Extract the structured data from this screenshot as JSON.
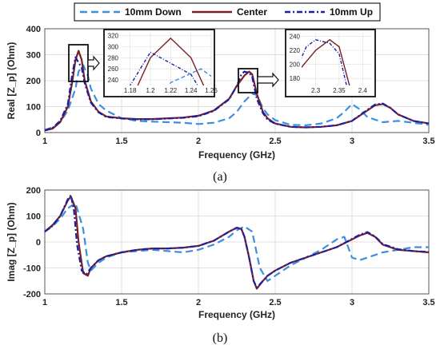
{
  "chart_data": [
    {
      "type": "line",
      "panel_label": "(a)",
      "xlabel": "Frequency (GHz)",
      "ylabel": "Real [Z_p] (Ohm)",
      "xlim": [
        1,
        3.5
      ],
      "ylim": [
        0,
        400
      ],
      "xticks": [
        1,
        1.5,
        2,
        2.5,
        3,
        3.5
      ],
      "xtick_labels": [
        "1",
        "1.5",
        "2",
        "2.5",
        "3",
        "3.5"
      ],
      "yticks": [
        0,
        100,
        200,
        300,
        400
      ],
      "ytick_labels": [
        "0",
        "100",
        "200",
        "300",
        "400"
      ],
      "grid": true,
      "legend": {
        "placement": "top",
        "entries": [
          "10mm Down",
          "Center",
          "10mm Up"
        ]
      },
      "series": [
        {
          "name": "10mm Down",
          "color": "#3b8fe0",
          "style": "dashed",
          "x": [
            1.0,
            1.05,
            1.1,
            1.15,
            1.2,
            1.22,
            1.25,
            1.28,
            1.3,
            1.35,
            1.4,
            1.5,
            1.6,
            1.7,
            1.8,
            1.9,
            2.0,
            2.1,
            2.2,
            2.25,
            2.3,
            2.35,
            2.38,
            2.42,
            2.45,
            2.5,
            2.6,
            2.7,
            2.8,
            2.9,
            2.95,
            3.0,
            3.05,
            3.1,
            3.2,
            3.3,
            3.4,
            3.5
          ],
          "y": [
            10,
            20,
            40,
            85,
            170,
            235,
            260,
            220,
            170,
            110,
            85,
            55,
            45,
            42,
            40,
            38,
            33,
            38,
            55,
            80,
            120,
            150,
            145,
            95,
            70,
            48,
            30,
            28,
            35,
            55,
            80,
            110,
            90,
            60,
            40,
            45,
            38,
            30
          ]
        },
        {
          "name": "Center",
          "color": "#7a1f24",
          "style": "solid",
          "x": [
            1.0,
            1.05,
            1.1,
            1.15,
            1.18,
            1.2,
            1.22,
            1.24,
            1.26,
            1.3,
            1.35,
            1.4,
            1.5,
            1.6,
            1.7,
            1.8,
            1.9,
            2.0,
            2.1,
            2.2,
            2.25,
            2.3,
            2.33,
            2.35,
            2.38,
            2.42,
            2.45,
            2.5,
            2.6,
            2.7,
            2.8,
            2.9,
            3.0,
            3.1,
            3.15,
            3.2,
            3.25,
            3.3,
            3.4,
            3.5
          ],
          "y": [
            8,
            15,
            40,
            100,
            200,
            280,
            315,
            280,
            200,
            120,
            80,
            62,
            55,
            52,
            52,
            55,
            58,
            65,
            85,
            130,
            180,
            220,
            235,
            225,
            150,
            80,
            55,
            35,
            22,
            20,
            22,
            28,
            45,
            85,
            105,
            110,
            95,
            70,
            45,
            35
          ]
        },
        {
          "name": "10mm Up",
          "color": "#1b1fa8",
          "style": "dashdot",
          "x": [
            1.0,
            1.05,
            1.1,
            1.15,
            1.18,
            1.2,
            1.22,
            1.24,
            1.26,
            1.3,
            1.35,
            1.4,
            1.5,
            1.6,
            1.7,
            1.8,
            1.9,
            2.0,
            2.1,
            2.2,
            2.25,
            2.28,
            2.3,
            2.33,
            2.35,
            2.38,
            2.42,
            2.45,
            2.5,
            2.6,
            2.7,
            2.8,
            2.9,
            3.0,
            3.1,
            3.15,
            3.2,
            3.25,
            3.3,
            3.4,
            3.5
          ],
          "y": [
            9,
            18,
            45,
            110,
            230,
            290,
            270,
            250,
            190,
            115,
            78,
            60,
            54,
            51,
            51,
            54,
            57,
            63,
            83,
            128,
            180,
            225,
            235,
            230,
            215,
            130,
            75,
            50,
            34,
            22,
            20,
            22,
            28,
            45,
            88,
            108,
            112,
            95,
            70,
            45,
            35
          ]
        }
      ],
      "insets": [
        {
          "xlim": [
            1.17,
            1.26
          ],
          "ylim": [
            230,
            325
          ],
          "xticks": [
            1.18,
            1.2,
            1.22,
            1.24,
            1.26
          ],
          "xtick_labels": [
            "1.18",
            "1.2",
            "1.22",
            "1.24",
            "1.26"
          ],
          "yticks": [
            240,
            260,
            280,
            300,
            320
          ],
          "ytick_labels": [
            "240",
            "260",
            "280",
            "300",
            "320"
          ]
        },
        {
          "xlim": [
            2.27,
            2.42
          ],
          "ylim": [
            170,
            245
          ],
          "xticks": [
            2.3,
            2.35,
            2.4
          ],
          "xtick_labels": [
            "2.3",
            "2.35",
            "2.4"
          ],
          "yticks": [
            180,
            200,
            220,
            240
          ],
          "ytick_labels": [
            "180",
            "200",
            "220",
            "240"
          ]
        }
      ]
    },
    {
      "type": "line",
      "panel_label": "(b)",
      "xlabel": "Frequency (GHz)",
      "ylabel": "Imag [Z_p] (Ohm)",
      "xlim": [
        1,
        3.5
      ],
      "ylim": [
        -200,
        200
      ],
      "xticks": [
        1,
        1.5,
        2,
        2.5,
        3,
        3.5
      ],
      "xtick_labels": [
        "1",
        "1.5",
        "2",
        "2.5",
        "3",
        "3.5"
      ],
      "yticks": [
        -200,
        -100,
        0,
        100,
        200
      ],
      "ytick_labels": [
        "-200",
        "-100",
        "0",
        "100",
        "200"
      ],
      "grid": true,
      "series": [
        {
          "name": "10mm Down",
          "color": "#3b8fe0",
          "style": "dashed",
          "x": [
            1.0,
            1.05,
            1.1,
            1.15,
            1.2,
            1.25,
            1.28,
            1.3,
            1.35,
            1.4,
            1.5,
            1.6,
            1.7,
            1.8,
            1.9,
            2.0,
            2.1,
            2.2,
            2.25,
            2.3,
            2.35,
            2.4,
            2.45,
            2.5,
            2.6,
            2.7,
            2.8,
            2.9,
            2.95,
            3.0,
            3.05,
            3.1,
            3.2,
            3.3,
            3.4,
            3.5
          ],
          "y": [
            40,
            60,
            90,
            130,
            150,
            50,
            -80,
            -110,
            -80,
            -60,
            -40,
            -35,
            -30,
            -35,
            -40,
            -30,
            -10,
            20,
            45,
            60,
            40,
            -100,
            -150,
            -130,
            -90,
            -60,
            -30,
            10,
            20,
            -60,
            -70,
            -60,
            -40,
            -30,
            -20,
            -20
          ]
        },
        {
          "name": "Center",
          "color": "#7a1f24",
          "style": "solid",
          "x": [
            1.0,
            1.05,
            1.1,
            1.15,
            1.17,
            1.2,
            1.22,
            1.25,
            1.28,
            1.3,
            1.35,
            1.4,
            1.5,
            1.6,
            1.7,
            1.8,
            1.9,
            2.0,
            2.1,
            2.2,
            2.25,
            2.28,
            2.3,
            2.33,
            2.36,
            2.38,
            2.42,
            2.45,
            2.5,
            2.6,
            2.7,
            2.8,
            2.9,
            3.0,
            3.05,
            3.1,
            3.15,
            3.2,
            3.3,
            3.4,
            3.5
          ],
          "y": [
            40,
            65,
            100,
            160,
            175,
            130,
            0,
            -120,
            -130,
            -100,
            -70,
            -55,
            -40,
            -30,
            -25,
            -25,
            -22,
            -15,
            5,
            40,
            55,
            50,
            20,
            -60,
            -150,
            -180,
            -150,
            -130,
            -110,
            -80,
            -60,
            -40,
            -20,
            10,
            25,
            35,
            20,
            -10,
            -30,
            -35,
            -40
          ]
        },
        {
          "name": "10mm Up",
          "color": "#1b1fa8",
          "style": "dashdot",
          "x": [
            1.0,
            1.05,
            1.1,
            1.15,
            1.17,
            1.19,
            1.21,
            1.24,
            1.27,
            1.3,
            1.35,
            1.4,
            1.5,
            1.6,
            1.7,
            1.8,
            1.9,
            2.0,
            2.1,
            2.2,
            2.25,
            2.28,
            2.3,
            2.33,
            2.36,
            2.38,
            2.42,
            2.45,
            2.5,
            2.6,
            2.7,
            2.8,
            2.9,
            3.0,
            3.05,
            3.1,
            3.15,
            3.2,
            3.3,
            3.4,
            3.5
          ],
          "y": [
            40,
            62,
            100,
            165,
            180,
            120,
            -10,
            -110,
            -125,
            -100,
            -70,
            -55,
            -40,
            -30,
            -25,
            -25,
            -22,
            -15,
            5,
            40,
            55,
            50,
            20,
            -60,
            -150,
            -175,
            -150,
            -130,
            -110,
            -80,
            -60,
            -40,
            -20,
            12,
            28,
            38,
            22,
            -8,
            -28,
            -35,
            -38
          ]
        }
      ]
    }
  ]
}
